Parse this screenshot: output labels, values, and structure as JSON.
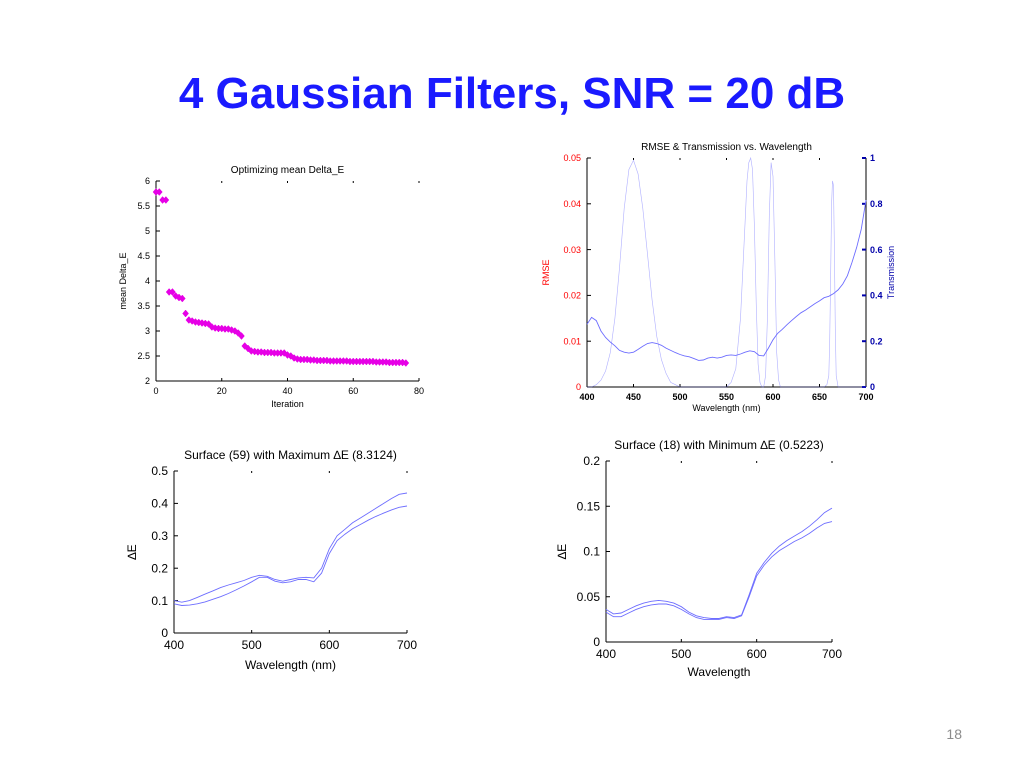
{
  "slide": {
    "title": "4 Gaussian Filters, SNR = 20 dB",
    "page_number": "18"
  },
  "colors": {
    "title": "#1a1aff",
    "magenta": "#e600e6",
    "trace": "#6d6dff",
    "left_axis": "#ff0000",
    "right_axis": "#0000aa"
  },
  "chart_data": [
    {
      "type": "scatter",
      "title": "Optimizing mean Delta_E",
      "xlabel": "Iteration",
      "ylabel": "mean Delta_E",
      "xlim": [
        0,
        80
      ],
      "ylim": [
        2,
        6
      ],
      "xticks": [
        0,
        20,
        40,
        60,
        80
      ],
      "yticks": [
        2,
        2.5,
        3,
        3.5,
        4,
        4.5,
        5,
        5.5,
        6
      ],
      "ytick_labels": [
        "2",
        "2.5",
        "3",
        "3.5",
        "4",
        "4.5",
        "5",
        "5.5",
        "6"
      ],
      "grid": false,
      "series": [
        {
          "x": [
            0,
            1,
            2,
            3,
            4,
            5,
            6,
            7,
            8,
            9,
            10,
            11,
            12,
            13,
            14,
            15,
            16,
            17,
            18,
            19,
            20,
            21,
            22,
            23,
            24,
            25,
            26,
            27,
            28,
            29,
            30,
            31,
            32,
            33,
            34,
            35,
            36,
            37,
            38,
            39,
            40,
            41,
            42,
            43,
            44,
            45,
            46,
            47,
            48,
            49,
            50,
            51,
            52,
            53,
            54,
            55,
            56,
            57,
            58,
            59,
            60,
            61,
            62,
            63,
            64,
            65,
            66,
            67,
            68,
            69,
            70,
            71,
            72,
            73,
            74,
            75,
            76
          ],
          "y": [
            5.78,
            5.78,
            5.62,
            5.62,
            3.78,
            3.78,
            3.7,
            3.67,
            3.65,
            3.35,
            3.22,
            3.2,
            3.18,
            3.17,
            3.16,
            3.15,
            3.14,
            3.08,
            3.06,
            3.05,
            3.05,
            3.04,
            3.04,
            3.02,
            3.0,
            2.96,
            2.9,
            2.7,
            2.65,
            2.6,
            2.59,
            2.58,
            2.58,
            2.57,
            2.57,
            2.57,
            2.56,
            2.56,
            2.56,
            2.56,
            2.52,
            2.5,
            2.46,
            2.44,
            2.43,
            2.43,
            2.43,
            2.42,
            2.42,
            2.41,
            2.41,
            2.41,
            2.41,
            2.4,
            2.4,
            2.4,
            2.4,
            2.4,
            2.4,
            2.39,
            2.39,
            2.39,
            2.39,
            2.39,
            2.39,
            2.39,
            2.39,
            2.38,
            2.38,
            2.38,
            2.38,
            2.37,
            2.37,
            2.37,
            2.37,
            2.37,
            2.36
          ]
        }
      ]
    },
    {
      "type": "line",
      "title": "RMSE & Transmission vs. Wavelength",
      "xlabel": "Wavelength (nm)",
      "ylabel": "RMSE",
      "ylabel_right": "Transmission",
      "xlim": [
        400,
        700
      ],
      "ylim": [
        0,
        0.05
      ],
      "ylim_right": [
        0,
        1
      ],
      "xticks": [
        400,
        450,
        500,
        550,
        600,
        650,
        700
      ],
      "yticks": [
        0,
        0.01,
        0.02,
        0.03,
        0.04,
        0.05
      ],
      "ytick_labels": [
        "0",
        "0.01",
        "0.02",
        "0.03",
        "0.04",
        "0.05"
      ],
      "yticks_right": [
        0,
        0.2,
        0.4,
        0.6,
        0.8,
        1
      ],
      "ytick_labels_right": [
        "0",
        "0.2",
        "0.4",
        "0.6",
        "0.8",
        "1"
      ],
      "grid": false,
      "series": [
        {
          "axis": "left",
          "x": [
            400,
            405,
            410,
            415,
            420,
            425,
            430,
            435,
            440,
            445,
            450,
            455,
            460,
            465,
            470,
            475,
            480,
            485,
            490,
            495,
            500,
            505,
            510,
            515,
            520,
            525,
            530,
            535,
            540,
            545,
            550,
            555,
            560,
            565,
            570,
            575,
            580,
            585,
            590,
            595,
            600,
            605,
            610,
            615,
            620,
            625,
            630,
            635,
            640,
            645,
            650,
            655,
            660,
            665,
            670,
            675,
            680,
            685,
            690,
            695,
            700
          ],
          "y": [
            0.0137,
            0.0152,
            0.0145,
            0.0122,
            0.0108,
            0.0098,
            0.009,
            0.008,
            0.0076,
            0.0074,
            0.0076,
            0.0082,
            0.0089,
            0.0095,
            0.0097,
            0.0095,
            0.0091,
            0.0085,
            0.008,
            0.0075,
            0.0071,
            0.0068,
            0.0066,
            0.0062,
            0.0058,
            0.0059,
            0.0063,
            0.0065,
            0.0063,
            0.0065,
            0.0069,
            0.007,
            0.0069,
            0.0072,
            0.0076,
            0.0079,
            0.0077,
            0.0069,
            0.0068,
            0.0085,
            0.0103,
            0.0117,
            0.0126,
            0.0136,
            0.0145,
            0.0154,
            0.0162,
            0.0168,
            0.0175,
            0.0182,
            0.0188,
            0.0195,
            0.0198,
            0.0204,
            0.0212,
            0.0225,
            0.0243,
            0.0272,
            0.0305,
            0.0345,
            0.0408
          ]
        },
        {
          "axis": "right",
          "x": [
            400,
            405,
            410,
            415,
            420,
            425,
            430,
            435,
            440,
            445,
            450,
            455,
            460,
            465,
            470,
            475,
            480,
            485,
            490,
            495,
            500,
            505,
            510,
            515,
            520,
            525,
            530,
            535,
            540,
            545,
            550,
            555,
            560,
            565,
            570,
            572,
            574,
            576,
            578,
            580,
            582,
            584,
            586,
            588,
            590,
            592,
            594,
            596,
            598,
            600,
            602,
            604,
            606,
            608,
            610,
            620,
            630,
            640,
            650,
            655,
            658,
            660,
            661,
            662,
            663,
            664,
            665,
            666,
            667,
            668,
            670,
            675,
            680,
            690,
            700
          ],
          "y": [
            0,
            0,
            0.01,
            0.03,
            0.07,
            0.15,
            0.3,
            0.52,
            0.78,
            0.95,
            0.99,
            0.93,
            0.78,
            0.58,
            0.38,
            0.22,
            0.12,
            0.06,
            0.02,
            0.01,
            0,
            0,
            0,
            0,
            0,
            0,
            0,
            0,
            0,
            0,
            0,
            0.02,
            0.08,
            0.3,
            0.72,
            0.9,
            0.98,
            1.0,
            0.95,
            0.7,
            0.35,
            0.1,
            0.02,
            0,
            0,
            0.05,
            0.3,
            0.75,
            0.98,
            0.92,
            0.55,
            0.15,
            0.03,
            0,
            0,
            0,
            0,
            0,
            0,
            0,
            0.01,
            0.05,
            0.2,
            0.5,
            0.8,
            0.9,
            0.88,
            0.6,
            0.25,
            0.05,
            0,
            0,
            0,
            0,
            0
          ]
        }
      ]
    },
    {
      "type": "line",
      "title": "Surface (59) with Maximum ∆E (8.3124)",
      "xlabel": "Wavelength (nm)",
      "ylabel": "∆E",
      "xlim": [
        400,
        700
      ],
      "ylim": [
        0,
        0.5
      ],
      "xticks": [
        400,
        500,
        600,
        700
      ],
      "yticks": [
        0,
        0.1,
        0.2,
        0.3,
        0.4,
        0.5
      ],
      "ytick_labels": [
        "0",
        "0.1",
        "0.2",
        "0.3",
        "0.4",
        "0.5"
      ],
      "grid": false,
      "series": [
        {
          "x": [
            400,
            410,
            420,
            430,
            440,
            450,
            460,
            470,
            480,
            490,
            500,
            510,
            520,
            530,
            540,
            550,
            560,
            570,
            580,
            590,
            600,
            610,
            620,
            630,
            640,
            650,
            660,
            670,
            680,
            690,
            700
          ],
          "y": [
            0.1,
            0.095,
            0.1,
            0.11,
            0.12,
            0.13,
            0.14,
            0.148,
            0.155,
            0.162,
            0.172,
            0.178,
            0.175,
            0.165,
            0.16,
            0.165,
            0.17,
            0.172,
            0.17,
            0.2,
            0.26,
            0.3,
            0.32,
            0.34,
            0.355,
            0.37,
            0.385,
            0.4,
            0.415,
            0.428,
            0.432
          ]
        },
        {
          "x": [
            400,
            410,
            420,
            430,
            440,
            450,
            460,
            470,
            480,
            490,
            500,
            510,
            520,
            530,
            540,
            550,
            560,
            570,
            580,
            590,
            600,
            610,
            620,
            630,
            640,
            650,
            660,
            670,
            680,
            690,
            700
          ],
          "y": [
            0.09,
            0.085,
            0.086,
            0.09,
            0.096,
            0.104,
            0.112,
            0.122,
            0.133,
            0.145,
            0.158,
            0.172,
            0.172,
            0.16,
            0.155,
            0.158,
            0.165,
            0.165,
            0.158,
            0.185,
            0.245,
            0.285,
            0.305,
            0.322,
            0.335,
            0.348,
            0.36,
            0.37,
            0.38,
            0.388,
            0.392
          ]
        }
      ]
    },
    {
      "type": "line",
      "title": "Surface (18) with Minimum ∆E (0.5223)",
      "xlabel": "Wavelength",
      "ylabel": "∆E",
      "xlim": [
        400,
        700
      ],
      "ylim": [
        0,
        0.2
      ],
      "xticks": [
        400,
        500,
        600,
        700
      ],
      "yticks": [
        0,
        0.05,
        0.1,
        0.15,
        0.2
      ],
      "ytick_labels": [
        "0",
        "0.05",
        "0.1",
        "0.15",
        "0.2"
      ],
      "grid": false,
      "series": [
        {
          "x": [
            400,
            410,
            420,
            430,
            440,
            450,
            460,
            470,
            480,
            490,
            500,
            510,
            520,
            530,
            540,
            550,
            560,
            570,
            580,
            590,
            600,
            610,
            620,
            630,
            640,
            650,
            660,
            670,
            680,
            690,
            700
          ],
          "y": [
            0.036,
            0.031,
            0.032,
            0.036,
            0.04,
            0.043,
            0.045,
            0.046,
            0.045,
            0.043,
            0.039,
            0.033,
            0.029,
            0.027,
            0.026,
            0.026,
            0.028,
            0.027,
            0.03,
            0.052,
            0.076,
            0.088,
            0.098,
            0.106,
            0.112,
            0.117,
            0.122,
            0.128,
            0.135,
            0.143,
            0.148
          ]
        },
        {
          "x": [
            400,
            410,
            420,
            430,
            440,
            450,
            460,
            470,
            480,
            490,
            500,
            510,
            520,
            530,
            540,
            550,
            560,
            570,
            580,
            590,
            600,
            610,
            620,
            630,
            640,
            650,
            660,
            670,
            680,
            690,
            700
          ],
          "y": [
            0.033,
            0.028,
            0.028,
            0.032,
            0.036,
            0.039,
            0.041,
            0.042,
            0.042,
            0.04,
            0.036,
            0.031,
            0.027,
            0.025,
            0.025,
            0.025,
            0.027,
            0.026,
            0.029,
            0.05,
            0.073,
            0.085,
            0.094,
            0.101,
            0.106,
            0.111,
            0.115,
            0.12,
            0.126,
            0.131,
            0.133
          ]
        }
      ]
    }
  ]
}
